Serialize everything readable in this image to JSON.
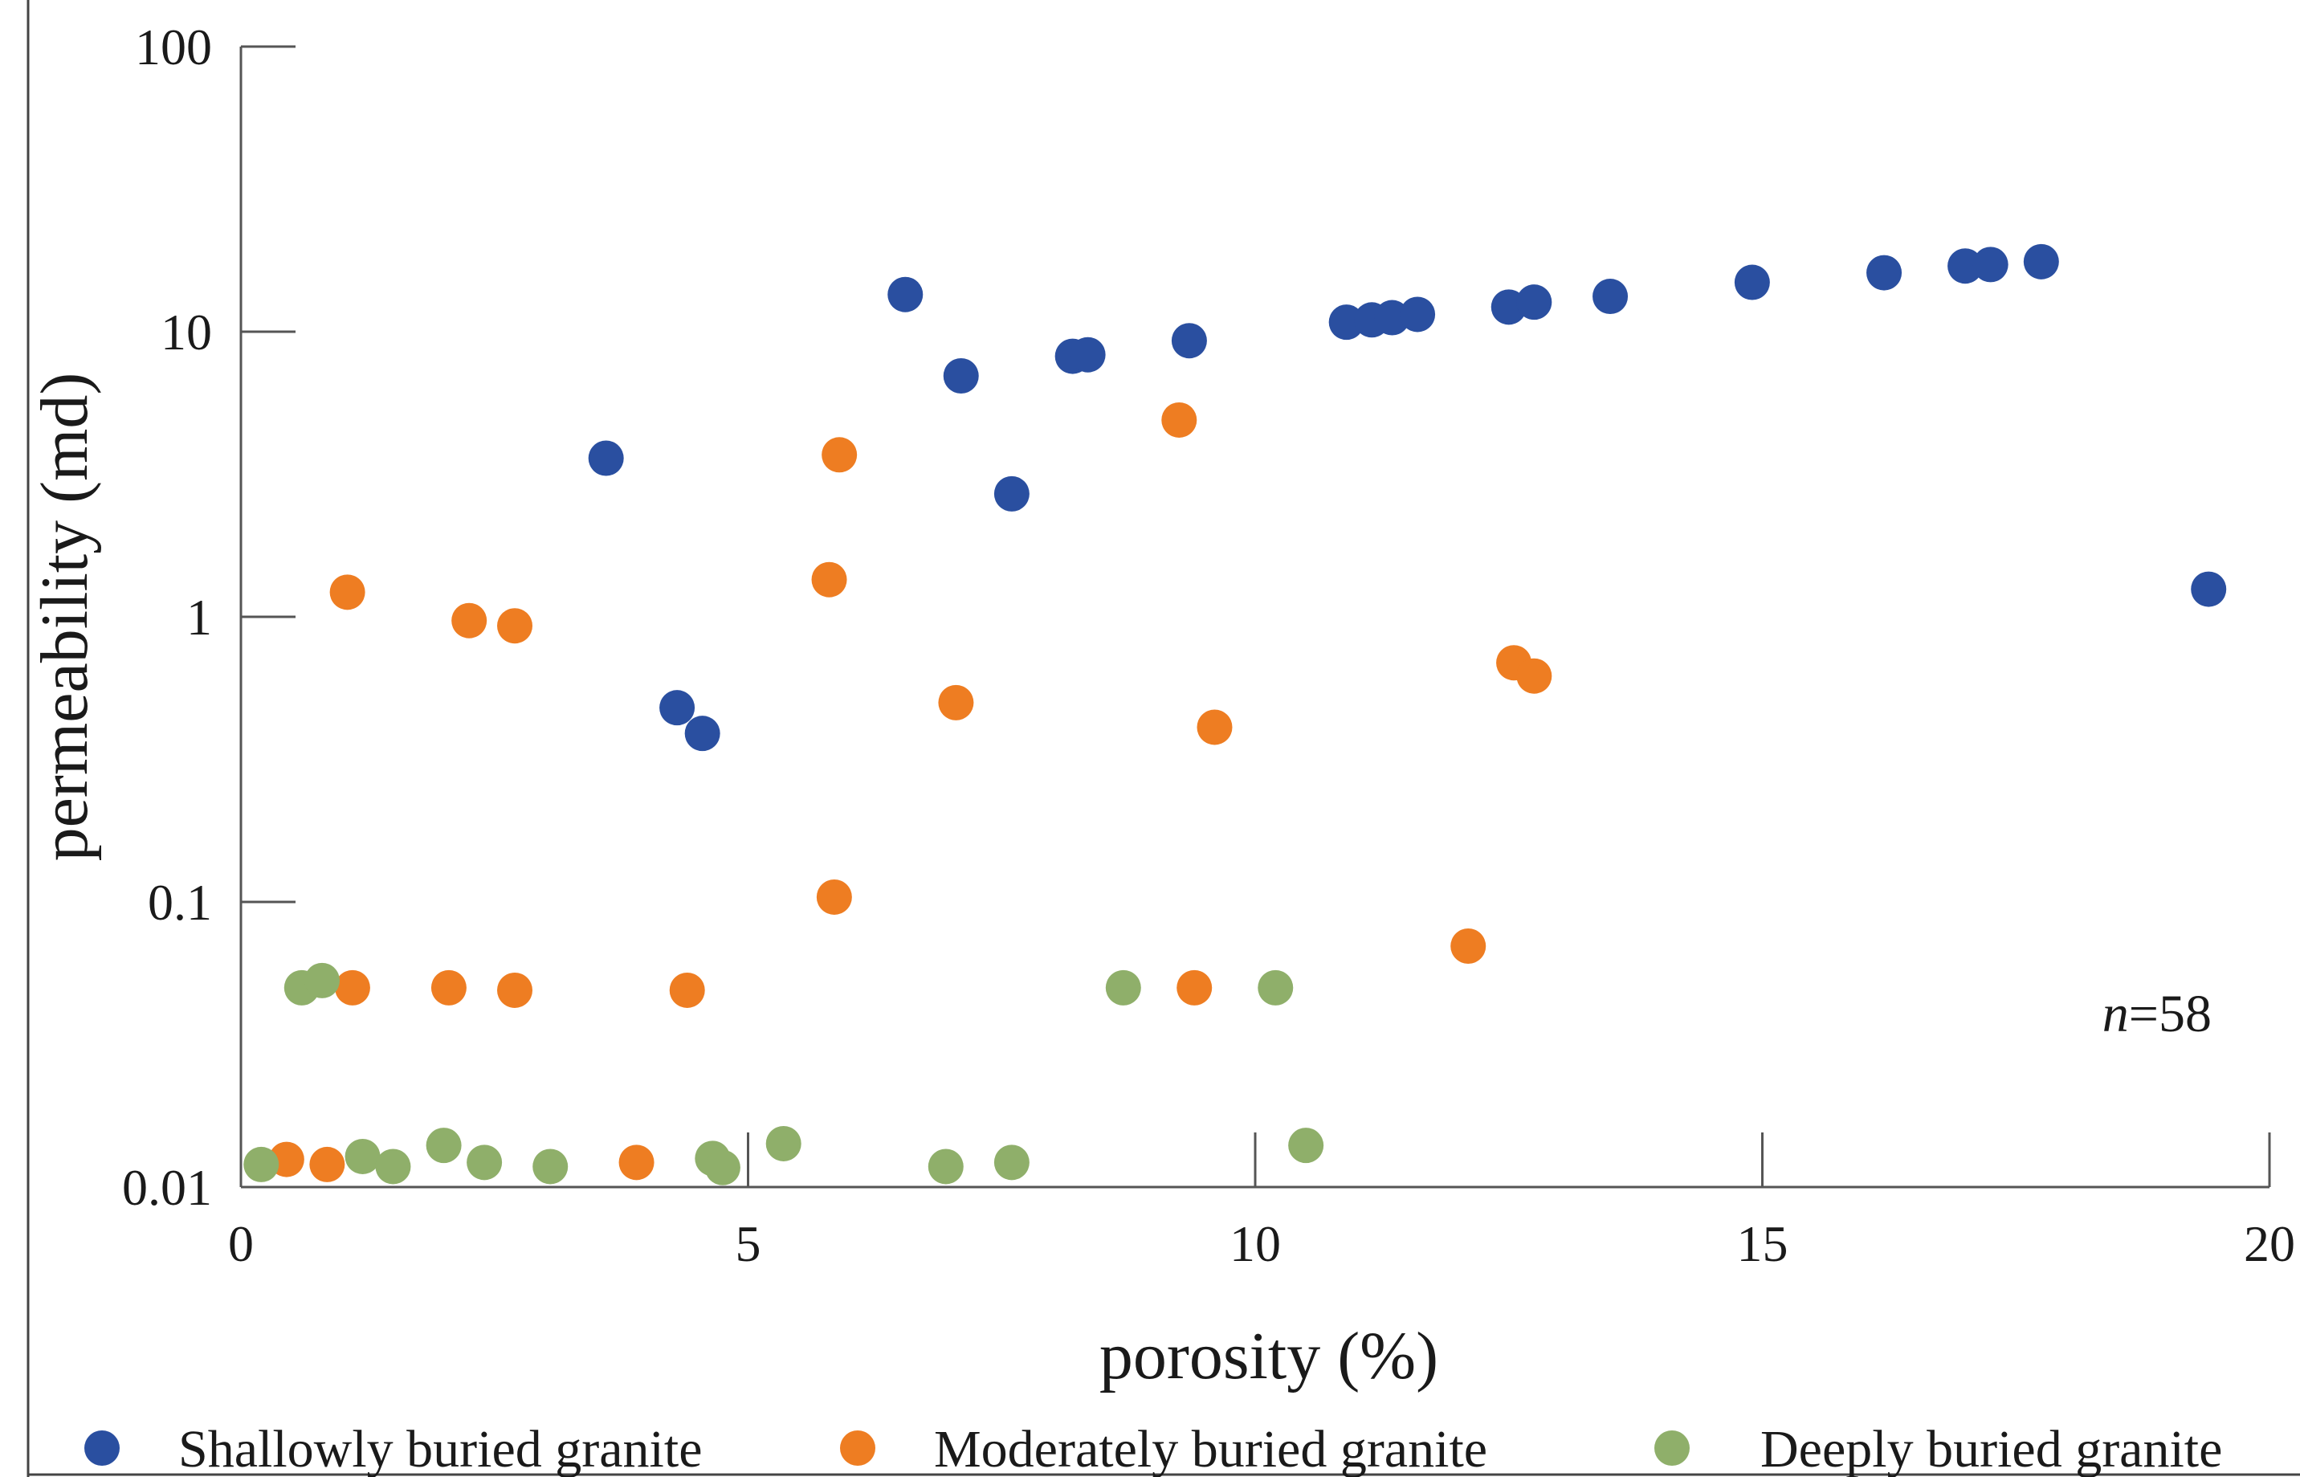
{
  "chart_data": {
    "type": "scatter",
    "title": "",
    "xlabel": "porosity (%)",
    "ylabel": "permeability (md)",
    "xlim": [
      0,
      20
    ],
    "ylim": [
      0.01,
      100
    ],
    "yscale": "log",
    "grid": false,
    "xticks": [
      0,
      5,
      10,
      15,
      20
    ],
    "xtick_labels": [
      "0",
      "5",
      "10",
      "15",
      "20"
    ],
    "yticks": [
      0.01,
      0.1,
      1,
      10,
      100
    ],
    "ytick_labels": [
      "0.01",
      "0.1",
      "1",
      "10",
      "100"
    ],
    "legend_position": "bottom",
    "annotation": {
      "italic": "n",
      "text": "=58"
    },
    "series": [
      {
        "name": "Shallowly buried granite",
        "color": "#2a4fa0",
        "points": [
          [
            3.6,
            3.6
          ],
          [
            4.3,
            0.48
          ],
          [
            4.55,
            0.39
          ],
          [
            6.55,
            13.5
          ],
          [
            7.1,
            7.0
          ],
          [
            7.6,
            2.7
          ],
          [
            8.2,
            8.2
          ],
          [
            8.35,
            8.3
          ],
          [
            9.35,
            9.3
          ],
          [
            10.9,
            10.8
          ],
          [
            11.15,
            11.0
          ],
          [
            11.35,
            11.2
          ],
          [
            11.6,
            11.5
          ],
          [
            12.5,
            12.2
          ],
          [
            12.75,
            12.7
          ],
          [
            13.5,
            13.3
          ],
          [
            14.9,
            14.9
          ],
          [
            16.2,
            16.1
          ],
          [
            17.0,
            17.0
          ],
          [
            17.25,
            17.2
          ],
          [
            17.75,
            17.6
          ],
          [
            19.4,
            1.25
          ]
        ]
      },
      {
        "name": "Moderately buried granite",
        "color": "#ee7d22",
        "points": [
          [
            0.45,
            0.0125
          ],
          [
            0.85,
            0.012
          ],
          [
            1.05,
            1.22
          ],
          [
            1.1,
            0.05
          ],
          [
            2.05,
            0.05
          ],
          [
            2.25,
            0.97
          ],
          [
            2.7,
            0.049
          ],
          [
            2.7,
            0.93
          ],
          [
            3.9,
            0.0122
          ],
          [
            4.4,
            0.049
          ],
          [
            5.8,
            1.35
          ],
          [
            5.85,
            0.104
          ],
          [
            5.9,
            3.7
          ],
          [
            7.05,
            0.5
          ],
          [
            9.25,
            4.9
          ],
          [
            9.4,
            0.05
          ],
          [
            9.6,
            0.41
          ],
          [
            12.1,
            0.07
          ],
          [
            12.55,
            0.69
          ],
          [
            12.75,
            0.62
          ]
        ]
      },
      {
        "name": "Deeply buried granite",
        "color": "#8faf6a",
        "points": [
          [
            0.2,
            0.012
          ],
          [
            0.6,
            0.05
          ],
          [
            0.8,
            0.053
          ],
          [
            1.2,
            0.0128
          ],
          [
            1.5,
            0.0118
          ],
          [
            2.0,
            0.014
          ],
          [
            2.4,
            0.0122
          ],
          [
            3.05,
            0.0118
          ],
          [
            4.65,
            0.0126
          ],
          [
            4.75,
            0.0117
          ],
          [
            5.35,
            0.0142
          ],
          [
            6.95,
            0.0118
          ],
          [
            7.6,
            0.0122
          ],
          [
            8.7,
            0.05
          ],
          [
            10.2,
            0.05
          ],
          [
            10.5,
            0.014
          ]
        ]
      }
    ]
  }
}
